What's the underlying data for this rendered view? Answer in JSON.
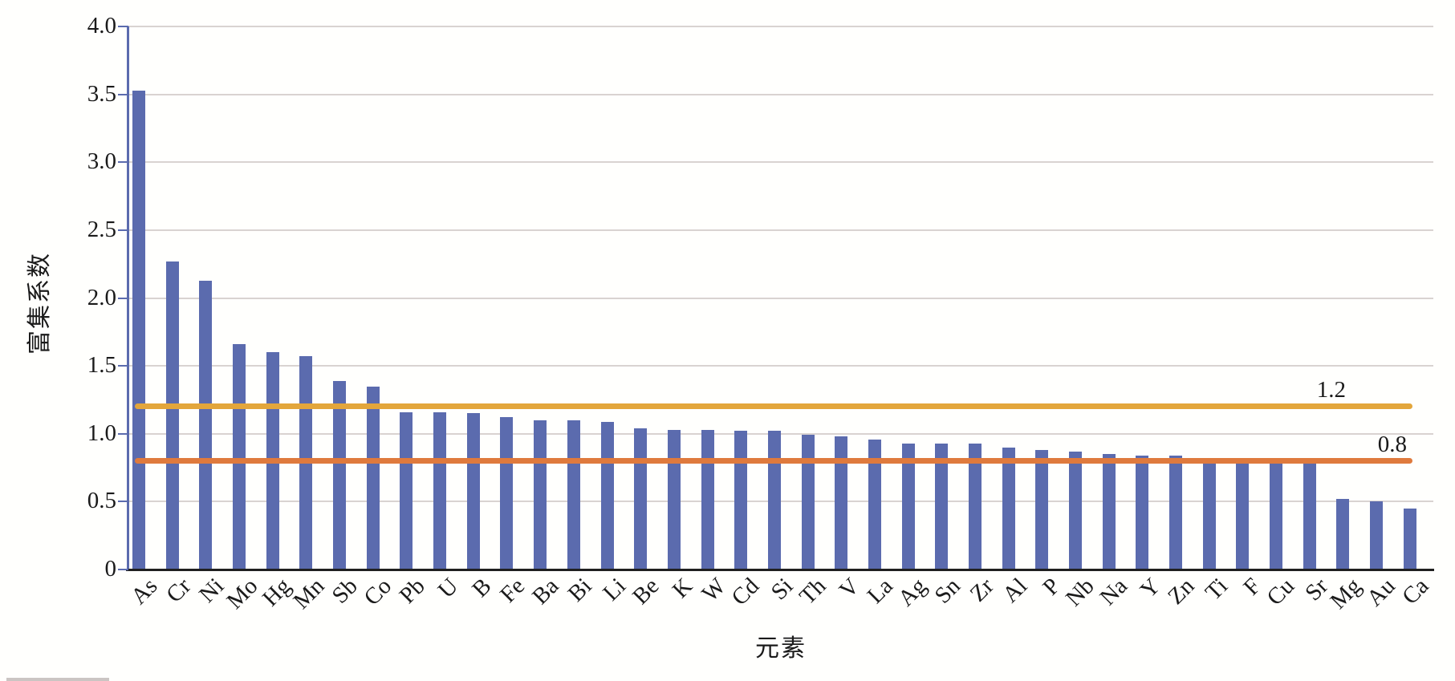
{
  "chart_data": {
    "type": "bar",
    "title": "",
    "xlabel": "元素",
    "ylabel": "富集系数",
    "categories": [
      "As",
      "Cr",
      "Ni",
      "Mo",
      "Hg",
      "Mn",
      "Sb",
      "Co",
      "Pb",
      "U",
      "B",
      "Fe",
      "Ba",
      "Bi",
      "Li",
      "Be",
      "K",
      "W",
      "Cd",
      "Si",
      "Th",
      "V",
      "La",
      "Ag",
      "Sn",
      "Zr",
      "Al",
      "P",
      "Nb",
      "Na",
      "Y",
      "Zn",
      "Ti",
      "F",
      "Cu",
      "Sr",
      "Mg",
      "Au",
      "Ca"
    ],
    "values": [
      3.53,
      2.27,
      2.13,
      1.66,
      1.6,
      1.57,
      1.39,
      1.35,
      1.16,
      1.16,
      1.15,
      1.12,
      1.1,
      1.1,
      1.09,
      1.04,
      1.03,
      1.03,
      1.02,
      1.02,
      0.99,
      0.98,
      0.96,
      0.93,
      0.93,
      0.93,
      0.9,
      0.88,
      0.87,
      0.85,
      0.84,
      0.84,
      0.82,
      0.8,
      0.8,
      0.8,
      0.52,
      0.5,
      0.45
    ],
    "ylim": [
      0,
      4.0
    ],
    "ytick_labels": [
      "4.0",
      "3.5",
      "3.0",
      "2.5",
      "2.0",
      "1.5",
      "1.0",
      "0.5",
      "0"
    ],
    "grid": true,
    "legend": false,
    "bar_color": "#5b6bae",
    "reference_lines": [
      {
        "value": 1.2,
        "label": "1.2",
        "color": "#e3a63b"
      },
      {
        "value": 0.8,
        "label": "0.8",
        "color": "#df7a3d"
      }
    ],
    "colors": {
      "axis_line": "#5b6bae",
      "gridline": "#d9d3d1",
      "baseline": "#1f1f1f",
      "text": "#1a1a1a"
    }
  }
}
